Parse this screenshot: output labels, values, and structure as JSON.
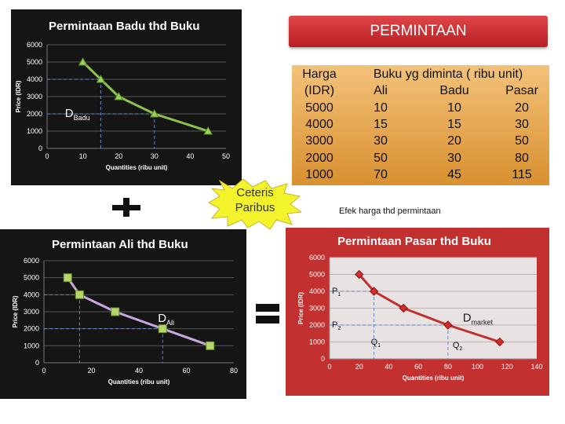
{
  "banner": {
    "title": "PERMINTAAN"
  },
  "table": {
    "header": [
      "Harga",
      "Buku  yg diminta ( ribu unit)"
    ],
    "unit_row": [
      "(IDR)",
      "Ali",
      "Badu",
      "Pasar"
    ],
    "rows": [
      [
        "5000",
        "10",
        "10",
        "20"
      ],
      [
        "4000",
        "15",
        "15",
        "30"
      ],
      [
        "3000",
        "30",
        "20",
        "50"
      ],
      [
        "2000",
        "50",
        "30",
        "80"
      ],
      [
        "1000",
        "70",
        "45",
        "115"
      ]
    ]
  },
  "callout": {
    "line1": "Ceteris",
    "line2": "Paribus"
  },
  "note": "Efek harga thd permintaan",
  "colors": {
    "badu_line": "#8bc34a",
    "ali_line": "#c7a7e0",
    "market_line": "#d93a3a",
    "table_fill": "#e8a848",
    "banner": "#c8282b"
  },
  "chart_data": [
    {
      "type": "line",
      "title": "Permintaan Badu thd Buku",
      "xlabel": "Quantities (ribu unit)",
      "ylabel": "Price (IDR)",
      "xlim": [
        0,
        50
      ],
      "ylim": [
        0,
        6000
      ],
      "xticks": [
        "0",
        "10",
        "20",
        "30",
        "40",
        "50"
      ],
      "yticks": [
        "0",
        "1000",
        "2000",
        "3000",
        "4000",
        "5000",
        "6000"
      ],
      "x": [
        10,
        15,
        20,
        30,
        45
      ],
      "y": [
        5000,
        4000,
        3000,
        2000,
        1000
      ],
      "curve_label": {
        "main": "D",
        "sub": "Badu"
      },
      "grid": true
    },
    {
      "type": "line",
      "title": "Permintaan Ali thd Buku",
      "xlabel": "Quantities (ribu unit)",
      "ylabel": "Price (IDR)",
      "xlim": [
        0,
        80
      ],
      "ylim": [
        0,
        6000
      ],
      "xticks": [
        "0",
        "20",
        "40",
        "60",
        "80"
      ],
      "yticks": [
        "0",
        "1000",
        "2000",
        "3000",
        "4000",
        "5000",
        "6000"
      ],
      "x": [
        10,
        15,
        30,
        50,
        70
      ],
      "y": [
        5000,
        4000,
        3000,
        2000,
        1000
      ],
      "curve_label": {
        "main": "D",
        "sub": "Ali"
      },
      "grid": true
    },
    {
      "type": "line",
      "title": "Permintaan Pasar thd Buku",
      "xlabel": "Quantities (ribu unit)",
      "ylabel": "Price (IDR)",
      "xlim": [
        0,
        140
      ],
      "ylim": [
        0,
        6000
      ],
      "xticks": [
        "0",
        "20",
        "40",
        "60",
        "80",
        "100",
        "120",
        "140"
      ],
      "yticks": [
        "0",
        "1000",
        "2000",
        "3000",
        "4000",
        "5000",
        "6000"
      ],
      "x": [
        20,
        30,
        50,
        80,
        115
      ],
      "y": [
        5000,
        4000,
        3000,
        2000,
        1000
      ],
      "curve_label": {
        "main": "D",
        "sub": "market"
      },
      "annotations": {
        "p1": "P",
        "p1_sub": "1",
        "p2": "P",
        "p2_sub": "2",
        "q1": "Q",
        "q1_sub": "1",
        "q2": "Q",
        "q2_sub": "2"
      },
      "grid": true
    }
  ]
}
